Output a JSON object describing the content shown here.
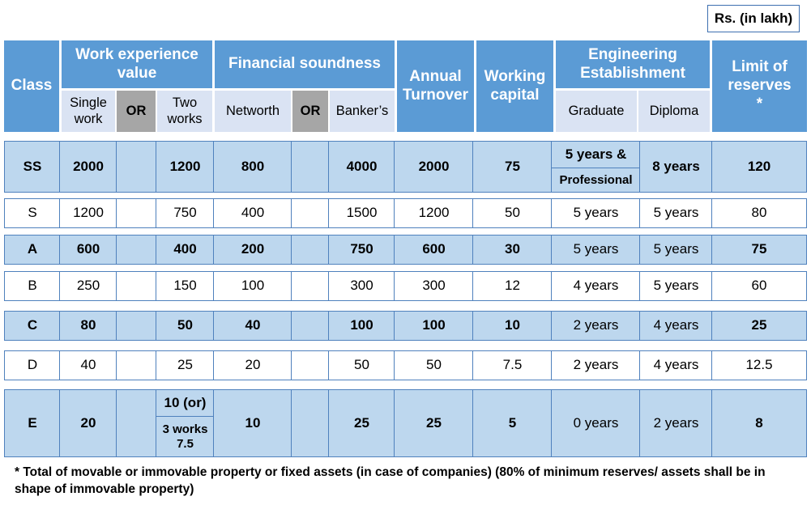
{
  "unit_label": "Rs. (in lakh)",
  "header": {
    "class": "Class",
    "work_experience": "Work experience value",
    "single_work": "Single work",
    "or": "OR",
    "two_works": "Two works",
    "financial_soundness": "Financial soundness",
    "networth": "Networth",
    "bankers": "Banker’s",
    "annual_turnover": "Annual Turnover",
    "working_capital": "Working capital",
    "engineering_establishment": "Engineering Establishment",
    "graduate": "Graduate",
    "diploma": "Diploma",
    "limit_of_reserves": "Limit of reserves *"
  },
  "rows": [
    {
      "class": "SS",
      "single": "2000",
      "two": "1200",
      "networth": "800",
      "bankers": "4000",
      "turnover": "2000",
      "capital": "75",
      "graduate": "5 years &",
      "graduate_note": "Professional",
      "diploma": "8 years",
      "limit": "120"
    },
    {
      "class": "S",
      "single": "1200",
      "two": "750",
      "networth": "400",
      "bankers": "1500",
      "turnover": "1200",
      "capital": "50",
      "graduate": "5 years",
      "diploma": "5 years",
      "limit": "80"
    },
    {
      "class": "A",
      "single": "600",
      "two": "400",
      "networth": "200",
      "bankers": "750",
      "turnover": "600",
      "capital": "30",
      "graduate": "5 years",
      "diploma": "5 years",
      "limit": "75"
    },
    {
      "class": "B",
      "single": "250",
      "two": "150",
      "networth": "100",
      "bankers": "300",
      "turnover": "300",
      "capital": "12",
      "graduate": "4 years",
      "diploma": "5 years",
      "limit": "60"
    },
    {
      "class": "C",
      "single": "80",
      "two": "50",
      "networth": "40",
      "bankers": "100",
      "turnover": "100",
      "capital": "10",
      "graduate": "2 years",
      "diploma": "4 years",
      "limit": "25"
    },
    {
      "class": "D",
      "single": "40",
      "two": "25",
      "networth": "20",
      "bankers": "50",
      "turnover": "50",
      "capital": "7.5",
      "graduate": "2 years",
      "diploma": "4 years",
      "limit": "12.5"
    },
    {
      "class": "E",
      "single": "20",
      "two": "10 (or)",
      "two_note_a": "3 works",
      "two_note_b": "7.5",
      "networth": "10",
      "bankers": "25",
      "turnover": "25",
      "capital": "5",
      "graduate": "0 years",
      "diploma": "2 years",
      "limit": "8"
    }
  ],
  "footnote": "*  Total of movable or immovable property or fixed assets (in case of companies) (80% of minimum reserves/ assets shall be in shape of immovable property)"
}
